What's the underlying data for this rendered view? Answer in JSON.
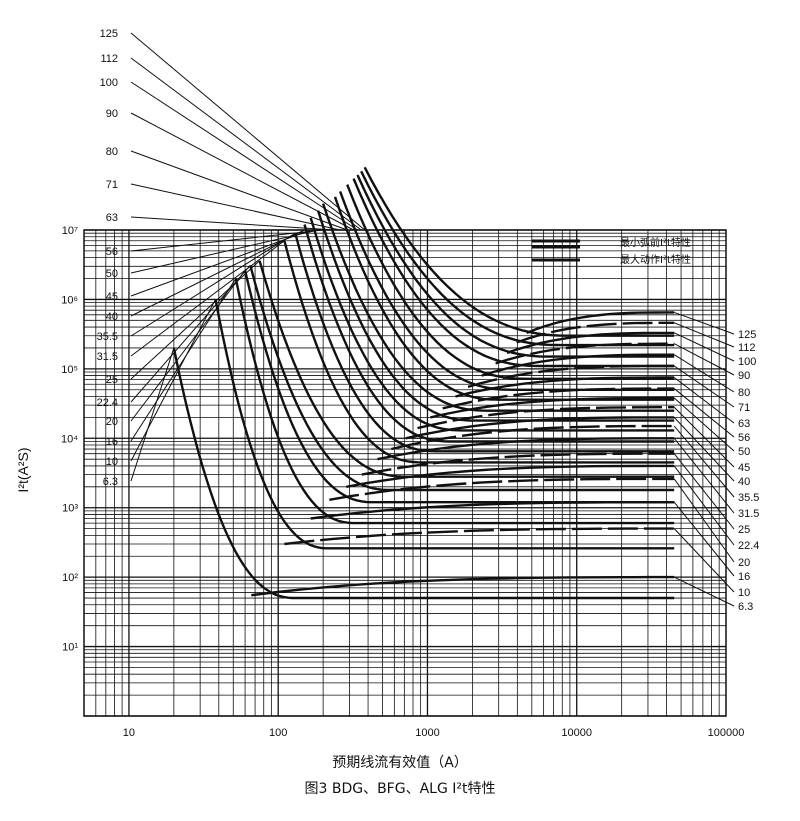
{
  "chart_data": {
    "type": "line",
    "x_scale": "log",
    "y_scale": "log",
    "xlim": [
      5,
      100000
    ],
    "ylim": [
      1,
      10000000
    ],
    "x_ticks": [
      "10",
      "100",
      "1000",
      "10000",
      "100000"
    ],
    "y_ticks": [
      "10¹",
      "10²",
      "10³",
      "10⁴",
      "10⁵",
      "10⁶",
      "10⁷"
    ],
    "ylabel": "I²t(A²S)",
    "xlabel": "预期线流有效值（A）",
    "title": "图3 BDG、BFG、ALG  I²t特性",
    "legend": [
      "最小弧前I²t特性",
      "最大动作I²t特性"
    ],
    "grid": true,
    "left_labels": [
      "125",
      "112",
      "100",
      "90",
      "80",
      "71",
      "63",
      "56",
      "50",
      "45",
      "40",
      "35.5",
      "31.5",
      "25",
      "22.4",
      "20",
      "16",
      "10",
      "6.3"
    ],
    "right_labels": [
      "125",
      "112",
      "100",
      "90",
      "80",
      "71",
      "63",
      "56",
      "50",
      "45",
      "40",
      "35.5",
      "31.5",
      "25",
      "22.4",
      "20",
      "16",
      "10",
      "6.3"
    ],
    "series": [
      {
        "name": "6.3",
        "start": [
          20,
          200000
        ],
        "knee": [
          60,
          55
        ],
        "min_plateau": 50,
        "max_plateau": 100
      },
      {
        "name": "10",
        "start": [
          38,
          1000000
        ],
        "knee": [
          100,
          300
        ],
        "min_plateau": 260,
        "max_plateau": 500
      },
      {
        "name": "16",
        "start": [
          52,
          2000000
        ],
        "knee": [
          150,
          700
        ],
        "min_plateau": 600,
        "max_plateau": 1200
      },
      {
        "name": "20",
        "start": [
          60,
          2600000
        ],
        "knee": [
          200,
          1300
        ],
        "min_plateau": 1200,
        "max_plateau": 2600
      },
      {
        "name": "22.4",
        "start": [
          65,
          3100000
        ],
        "knee": [
          260,
          2000
        ],
        "min_plateau": 1800,
        "max_plateau": 4000
      },
      {
        "name": "25",
        "start": [
          75,
          3600000
        ],
        "knee": [
          330,
          3000
        ],
        "min_plateau": 2800,
        "max_plateau": 6000
      },
      {
        "name": "31.5",
        "start": [
          110,
          7000000
        ],
        "knee": [
          420,
          5000
        ],
        "min_plateau": 4500,
        "max_plateau": 10000
      },
      {
        "name": "35.5",
        "start": [
          130,
          9000000
        ],
        "knee": [
          520,
          7000
        ],
        "min_plateau": 6500,
        "max_plateau": 15000
      },
      {
        "name": "40",
        "start": [
          150,
          12000000
        ],
        "knee": [
          650,
          10000
        ],
        "min_plateau": 9000,
        "max_plateau": 20000
      },
      {
        "name": "45",
        "start": [
          165,
          15000000
        ],
        "knee": [
          780,
          14000
        ],
        "min_plateau": 13000,
        "max_plateau": 28000
      },
      {
        "name": "50",
        "start": [
          185,
          19000000
        ],
        "knee": [
          950,
          20000
        ],
        "min_plateau": 18000,
        "max_plateau": 38000
      },
      {
        "name": "56",
        "start": [
          200,
          24000000
        ],
        "knee": [
          1150,
          27000
        ],
        "min_plateau": 25000,
        "max_plateau": 52000
      },
      {
        "name": "63",
        "start": [
          240,
          30000000
        ],
        "knee": [
          1400,
          40000
        ],
        "min_plateau": 36000,
        "max_plateau": 75000
      },
      {
        "name": "71",
        "start": [
          260,
          36000000
        ],
        "knee": [
          1700,
          55000
        ],
        "min_plateau": 50000,
        "max_plateau": 110000
      },
      {
        "name": "80",
        "start": [
          290,
          45000000
        ],
        "knee": [
          2100,
          80000
        ],
        "min_plateau": 72000,
        "max_plateau": 160000
      },
      {
        "name": "90",
        "start": [
          320,
          55000000
        ],
        "knee": [
          2600,
          120000
        ],
        "min_plateau": 110000,
        "max_plateau": 230000
      },
      {
        "name": "100",
        "start": [
          340,
          62000000
        ],
        "knee": [
          3100,
          170000
        ],
        "min_plateau": 150000,
        "max_plateau": 330000
      },
      {
        "name": "112",
        "start": [
          360,
          70000000
        ],
        "knee": [
          3600,
          240000
        ],
        "min_plateau": 220000,
        "max_plateau": 460000
      },
      {
        "name": "125",
        "start": [
          380,
          80000000
        ],
        "knee": [
          4200,
          330000
        ],
        "min_plateau": 300000,
        "max_plateau": 650000
      }
    ]
  }
}
